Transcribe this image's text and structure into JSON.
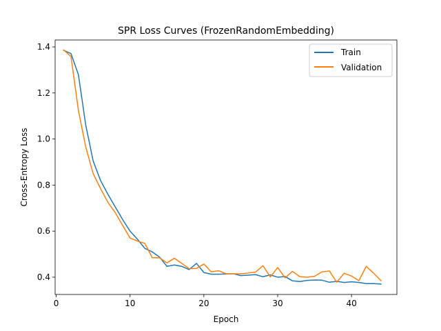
{
  "chart_data": {
    "type": "line",
    "title": "SPR Loss Curves (FrozenRandomEmbedding)",
    "xlabel": "Epoch",
    "ylabel": "Cross-Entropy Loss",
    "xlim": [
      -0.15,
      46.15
    ],
    "ylim": [
      0.325,
      1.43
    ],
    "xticks": [
      0,
      10,
      20,
      30,
      40
    ],
    "yticks": [
      0.4,
      0.6,
      0.8,
      1.0,
      1.2,
      1.4
    ],
    "ytick_labels": [
      "0.4",
      "0.6",
      "0.8",
      "1.0",
      "1.2",
      "1.4"
    ],
    "grid": false,
    "legend_position": "top-right",
    "x": [
      1,
      2,
      3,
      4,
      5,
      6,
      7,
      8,
      9,
      10,
      11,
      12,
      13,
      14,
      15,
      16,
      17,
      18,
      19,
      20,
      21,
      22,
      23,
      24,
      25,
      26,
      27,
      28,
      29,
      30,
      31,
      32,
      33,
      34,
      35,
      36,
      37,
      38,
      39,
      40,
      41,
      42,
      43,
      44
    ],
    "series": [
      {
        "name": "Train",
        "color": "#1f77b4",
        "values": [
          1.385,
          1.371,
          1.28,
          1.06,
          0.905,
          0.82,
          0.76,
          0.705,
          0.65,
          0.6,
          0.565,
          0.525,
          0.51,
          0.487,
          0.447,
          0.453,
          0.447,
          0.433,
          0.46,
          0.42,
          0.413,
          0.413,
          0.414,
          0.415,
          0.407,
          0.409,
          0.411,
          0.402,
          0.41,
          0.4,
          0.403,
          0.384,
          0.381,
          0.386,
          0.388,
          0.387,
          0.378,
          0.382,
          0.377,
          0.38,
          0.377,
          0.372,
          0.372,
          0.37
        ]
      },
      {
        "name": "Validation",
        "color": "#ff7f0e",
        "values": [
          1.387,
          1.358,
          1.125,
          0.965,
          0.85,
          0.785,
          0.725,
          0.68,
          0.625,
          0.57,
          0.557,
          0.547,
          0.485,
          0.484,
          0.462,
          0.482,
          0.46,
          0.437,
          0.438,
          0.457,
          0.423,
          0.428,
          0.415,
          0.415,
          0.415,
          0.418,
          0.422,
          0.45,
          0.401,
          0.442,
          0.397,
          0.425,
          0.402,
          0.4,
          0.404,
          0.423,
          0.427,
          0.378,
          0.417,
          0.405,
          0.385,
          0.447,
          0.417,
          0.385
        ]
      }
    ]
  }
}
